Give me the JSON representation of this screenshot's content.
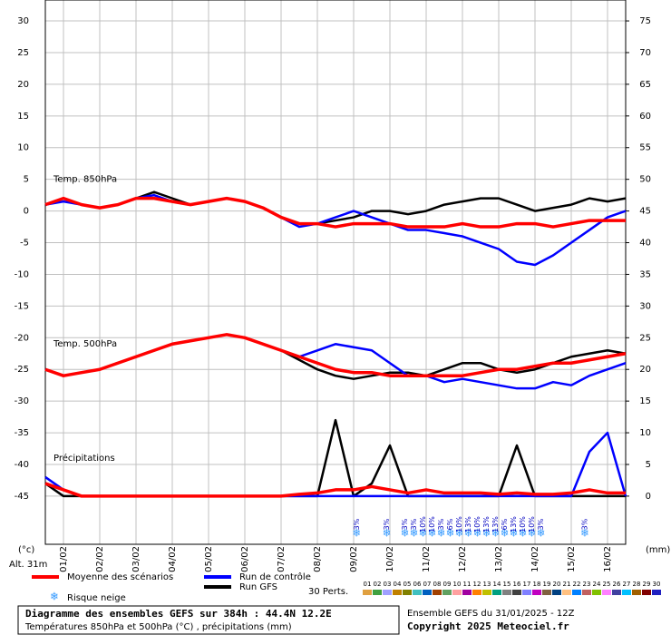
{
  "chart_data": {
    "type": "line",
    "x": [
      0,
      12,
      24,
      36,
      48,
      60,
      72,
      84,
      96,
      108,
      120,
      132,
      144,
      156,
      168,
      180,
      192,
      204,
      216,
      228,
      240,
      252,
      264,
      276,
      288,
      300,
      312,
      324,
      336,
      348,
      360,
      372,
      384
    ],
    "xlim": [
      0,
      384
    ],
    "xticks": [
      {
        "value": 12,
        "label": "01/02"
      },
      {
        "value": 36,
        "label": "02/02"
      },
      {
        "value": 60,
        "label": "03/02"
      },
      {
        "value": 84,
        "label": "04/02"
      },
      {
        "value": 108,
        "label": "05/02"
      },
      {
        "value": 132,
        "label": "06/02"
      },
      {
        "value": 156,
        "label": "07/02"
      },
      {
        "value": 180,
        "label": "08/02"
      },
      {
        "value": 204,
        "label": "09/02"
      },
      {
        "value": 228,
        "label": "10/02"
      },
      {
        "value": 252,
        "label": "11/02"
      },
      {
        "value": 276,
        "label": "12/02"
      },
      {
        "value": 300,
        "label": "13/02"
      },
      {
        "value": 324,
        "label": "14/02"
      },
      {
        "value": 348,
        "label": "15/02"
      },
      {
        "value": 372,
        "label": "16/02"
      }
    ],
    "ylim": [
      -52.6,
      33.3
    ],
    "yticks": [
      30,
      25,
      20,
      15,
      10,
      5,
      0,
      -5,
      -10,
      -15,
      -20,
      -25,
      -30,
      -35,
      -40,
      -45
    ],
    "y2lim": [
      -7.6,
      78.3
    ],
    "y2ticks": [
      75,
      70,
      65,
      60,
      55,
      50,
      45,
      40,
      35,
      30,
      25,
      20,
      15,
      10,
      5,
      0
    ],
    "ylabel": "(°c)",
    "y2label": "(mm)",
    "altitude": "Alt. 31m",
    "grid": true,
    "groups": [
      {
        "label": "Temp. 850hPa",
        "axis": "y",
        "series": [
          {
            "name": "Moyenne des scénarios",
            "color": "#ff0000",
            "values": [
              1,
              2,
              1,
              0.5,
              1,
              2,
              2,
              1.5,
              1,
              1.5,
              2,
              1.5,
              0.5,
              -1,
              -2,
              -2,
              -2.5,
              -2,
              -2,
              -2,
              -2.5,
              -2.5,
              -2.5,
              -2,
              -2.5,
              -2.5,
              -2,
              -2,
              -2.5,
              -2,
              -1.5,
              -1.5,
              -1.5
            ]
          },
          {
            "name": "Run de contrôle",
            "color": "#0000ff",
            "values": [
              1,
              1.5,
              1,
              0.5,
              1,
              2,
              2.5,
              1.5,
              1,
              1.5,
              2,
              1.5,
              0.5,
              -1,
              -2.5,
              -2,
              -1,
              0,
              -1,
              -2,
              -3,
              -3,
              -3.5,
              -4,
              -5,
              -6,
              -8,
              -8.5,
              -7,
              -5,
              -3,
              -1,
              0
            ]
          },
          {
            "name": "Run GFS",
            "color": "#000000",
            "values": [
              1,
              2,
              1,
              0.5,
              1,
              2,
              3,
              2,
              1,
              1.5,
              2,
              1.5,
              0.5,
              -1,
              -2,
              -2,
              -1.5,
              -1,
              0,
              0,
              -0.5,
              0,
              1,
              1.5,
              2,
              2,
              1,
              0,
              0.5,
              1,
              2,
              1.5,
              2
            ]
          }
        ]
      },
      {
        "label": "Temp. 500hPa",
        "axis": "y",
        "series": [
          {
            "name": "Moyenne des scénarios",
            "color": "#ff0000",
            "values": [
              -25,
              -26,
              -25.5,
              -25,
              -24,
              -23,
              -22,
              -21,
              -20.5,
              -20,
              -19.5,
              -20,
              -21,
              -22,
              -23,
              -24,
              -25,
              -25.5,
              -25.5,
              -26,
              -26,
              -26,
              -26,
              -26,
              -25.5,
              -25,
              -25,
              -24.5,
              -24,
              -24,
              -23.5,
              -23,
              -22.5
            ]
          },
          {
            "name": "Run de contrôle",
            "color": "#0000ff",
            "values": [
              -25,
              -26,
              -25.5,
              -25,
              -24,
              -23,
              -22,
              -21,
              -20.5,
              -20,
              -19.5,
              -20,
              -21,
              -22,
              -23,
              -22,
              -21,
              -21.5,
              -22,
              -24,
              -26,
              -26,
              -27,
              -26.5,
              -27,
              -27.5,
              -28,
              -28,
              -27,
              -27.5,
              -26,
              -25,
              -24
            ]
          },
          {
            "name": "Run GFS",
            "color": "#000000",
            "values": [
              -25,
              -26,
              -25.5,
              -25,
              -24,
              -23,
              -22,
              -21,
              -20.5,
              -20,
              -19.5,
              -20,
              -21,
              -22,
              -23.5,
              -25,
              -26,
              -26.5,
              -26,
              -25.5,
              -25.5,
              -26,
              -25,
              -24,
              -24,
              -25,
              -25.5,
              -25,
              -24,
              -23,
              -22.5,
              -22,
              -22.5
            ]
          }
        ]
      },
      {
        "label": "Précipitations",
        "axis": "y2",
        "series": [
          {
            "name": "Moyenne des scénarios",
            "color": "#ff0000",
            "values": [
              2,
              1,
              0,
              0,
              0,
              0,
              0,
              0,
              0,
              0,
              0,
              0,
              0,
              0,
              0.3,
              0.5,
              1,
              1,
              1.5,
              1,
              0.5,
              1,
              0.5,
              0.5,
              0.5,
              0.3,
              0.5,
              0.3,
              0.3,
              0.5,
              1,
              0.5,
              0.5
            ]
          },
          {
            "name": "Run de contrôle",
            "color": "#0000ff",
            "values": [
              3,
              1,
              0,
              0,
              0,
              0,
              0,
              0,
              0,
              0,
              0,
              0,
              0,
              0,
              0,
              0,
              0,
              0,
              0,
              0,
              0,
              0,
              0,
              0,
              0,
              0,
              0,
              0,
              0,
              0,
              7,
              10,
              0
            ]
          },
          {
            "name": "Run GFS",
            "color": "#000000",
            "values": [
              2,
              0,
              0,
              0,
              0,
              0,
              0,
              0,
              0,
              0,
              0,
              0,
              0,
              0,
              0,
              0,
              12,
              0,
              2,
              8,
              0,
              0,
              0,
              0,
              0,
              0,
              8,
              0,
              0,
              0,
              0,
              0,
              0
            ]
          }
        ]
      }
    ],
    "snow_risk": {
      "label": "Risque neige",
      "x": [
        206,
        226,
        238,
        244,
        250,
        256,
        262,
        268,
        274,
        280,
        286,
        292,
        298,
        304,
        310,
        316,
        322,
        328,
        357
      ],
      "values": [
        3,
        3,
        3,
        3,
        10,
        10,
        3,
        6,
        10,
        13,
        10,
        13,
        13,
        6,
        13,
        10,
        10,
        3,
        3
      ],
      "value_labels": [
        "3%",
        "3%",
        "3%",
        "3%",
        "10%",
        "10%",
        "3%",
        "6%",
        "10%",
        "13%",
        "10%",
        "13%",
        "13%",
        "6%",
        "13%",
        "10%",
        "10%",
        "3%",
        "3%"
      ]
    },
    "members": {
      "label": "30 Perts.",
      "names": [
        "01",
        "02",
        "03",
        "04",
        "05",
        "06",
        "07",
        "08",
        "09",
        "10",
        "11",
        "12",
        "13",
        "14",
        "15",
        "16",
        "17",
        "18",
        "19",
        "20",
        "21",
        "22",
        "23",
        "24",
        "25",
        "26",
        "27",
        "28",
        "29",
        "30"
      ],
      "colors": [
        "#e0a040",
        "#40a040",
        "#a0a0ff",
        "#c08000",
        "#808000",
        "#40c0c0",
        "#0060c0",
        "#a04000",
        "#60a060",
        "#ffa0a0",
        "#a000a0",
        "#ff8000",
        "#c0c000",
        "#00a080",
        "#808080",
        "#404040",
        "#8080ff",
        "#c000c0",
        "#806040",
        "#004080",
        "#ffc080",
        "#0080ff",
        "#c06060",
        "#80c000",
        "#ff80ff",
        "#4040a0",
        "#00c0ff",
        "#a06000",
        "#800000",
        "#2020c0"
      ]
    },
    "footer": {
      "title": "Diagramme des ensembles GEFS sur 384h : 44.4N 12.2E",
      "subtitle": "Températures 850hPa et 500hPa (°C) , précipitations (mm)",
      "run": "Ensemble GEFS du 31/01/2025 - 12Z",
      "copyright": "Copyright 2025 Meteociel.fr"
    }
  }
}
